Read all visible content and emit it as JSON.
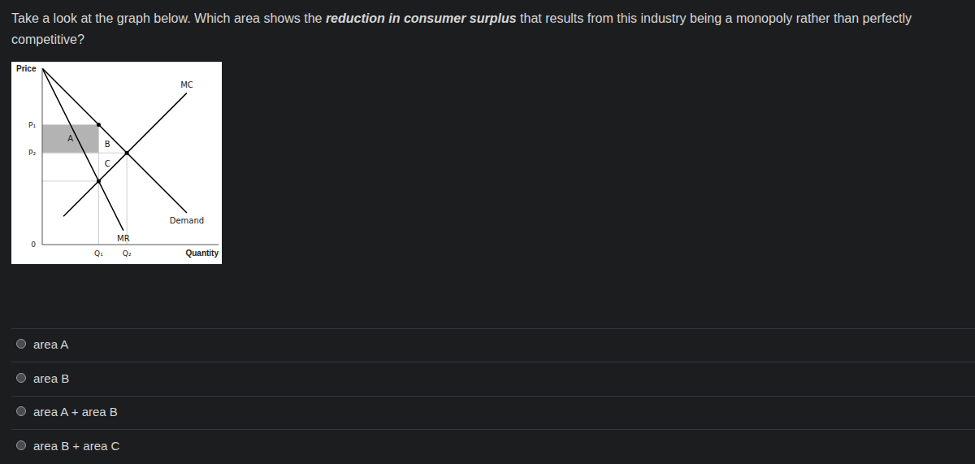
{
  "question": {
    "text_before": "Take a look at the graph below. Which area shows the ",
    "emphasis": "reduction in consumer surplus",
    "text_after": " that results from this industry being a monopoly rather than perfectly competitive?"
  },
  "chart_data": {
    "type": "line",
    "x_label": "Quantity",
    "y_label": "Price",
    "xlim": [
      0,
      100
    ],
    "ylim": [
      0,
      100
    ],
    "xticks": [
      {
        "value": 32,
        "label": "Q₁"
      },
      {
        "value": 48,
        "label": "Q₂"
      }
    ],
    "yticks": [
      0,
      {
        "value": 52,
        "label": "P₂"
      },
      {
        "value": 68,
        "label": "P₁"
      }
    ],
    "grid": false,
    "series": [
      {
        "name": "Demand",
        "color": "#000000",
        "x": [
          0,
          82
        ],
        "values": [
          100,
          18
        ]
      },
      {
        "name": "MR",
        "color": "#000000",
        "x": [
          0,
          46
        ],
        "values": [
          100,
          8
        ]
      },
      {
        "name": "MC",
        "color": "#000000",
        "x": [
          12,
          82
        ],
        "values": [
          16,
          86
        ]
      },
      {
        "type": "scatter",
        "color": "#000000",
        "marker": "circle",
        "x": [
          32,
          32,
          48
        ],
        "values": [
          68,
          36,
          52
        ]
      }
    ],
    "shaded_areas": [
      {
        "label": "A",
        "x": [
          0,
          32
        ],
        "y": [
          52,
          68
        ],
        "color": "#b3b3b3"
      }
    ],
    "annotations": [
      {
        "text": "B",
        "x": 37,
        "y": 57
      },
      {
        "text": "C",
        "x": 37,
        "y": 46
      }
    ]
  },
  "options": [
    "area A",
    "area B",
    "area A + area B",
    "area B + area C"
  ]
}
